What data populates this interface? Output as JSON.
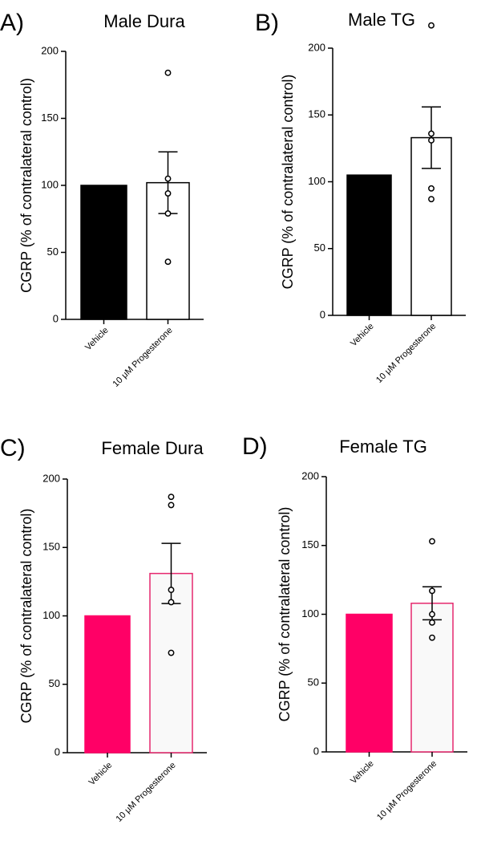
{
  "chart_data": [
    {
      "type": "bar",
      "panel": "A)",
      "title": "Male Dura",
      "ylabel": "CGRP (% of contralateral control)",
      "categories": [
        "Vehicle",
        "10 μM Progesterone"
      ],
      "ylim": [
        0,
        200
      ],
      "yticks": [
        0,
        50,
        100,
        150,
        200
      ],
      "series": [
        {
          "values": [
            100,
            102
          ],
          "sem": [
            null,
            23
          ]
        }
      ],
      "points": [
        [],
        [
          184,
          105,
          94,
          79,
          43
        ]
      ],
      "colors": {
        "fill": [
          "#000000",
          "#ffffff"
        ],
        "stroke": [
          "#000000",
          "#000000"
        ]
      },
      "grid": false
    },
    {
      "type": "bar",
      "panel": "B)",
      "title": "Male TG",
      "ylabel": "CGRP (% of contralateral control)",
      "categories": [
        "Vehicle",
        "10 μM Progesterone"
      ],
      "ylim": [
        0,
        200
      ],
      "yticks": [
        0,
        50,
        100,
        150,
        200
      ],
      "series": [
        {
          "values": [
            105,
            133
          ],
          "sem": [
            null,
            23
          ]
        }
      ],
      "points": [
        [],
        [
          217,
          136,
          131,
          95,
          87
        ]
      ],
      "colors": {
        "fill": [
          "#000000",
          "#ffffff"
        ],
        "stroke": [
          "#000000",
          "#000000"
        ]
      },
      "grid": false
    },
    {
      "type": "bar",
      "panel": "C)",
      "title": "Female Dura",
      "ylabel": "CGRP (% of contralateral control)",
      "categories": [
        "Vehicle",
        "10 μM Progesterone"
      ],
      "ylim": [
        0,
        200
      ],
      "yticks": [
        0,
        50,
        100,
        150,
        200
      ],
      "series": [
        {
          "values": [
            100,
            131
          ],
          "sem": [
            null,
            22
          ]
        }
      ],
      "points": [
        [],
        [
          187,
          181,
          119,
          110,
          73
        ]
      ],
      "colors": {
        "fill": [
          "#ff0066",
          "#f9f9f9"
        ],
        "stroke": [
          "#ff0066",
          "#e6286e"
        ]
      },
      "grid": false
    },
    {
      "type": "bar",
      "panel": "D)",
      "title": "Female TG",
      "ylabel": "CGRP (% of contralateral control)",
      "categories": [
        "Vehicle",
        "10 μM Progesterone"
      ],
      "ylim": [
        0,
        200
      ],
      "yticks": [
        0,
        50,
        100,
        150,
        200
      ],
      "series": [
        {
          "values": [
            100,
            108
          ],
          "sem": [
            null,
            12
          ]
        }
      ],
      "points": [
        [],
        [
          153,
          117,
          100,
          94,
          83
        ]
      ],
      "colors": {
        "fill": [
          "#ff0066",
          "#f9f9f9"
        ],
        "stroke": [
          "#ff0066",
          "#e6286e"
        ]
      },
      "grid": false
    }
  ]
}
